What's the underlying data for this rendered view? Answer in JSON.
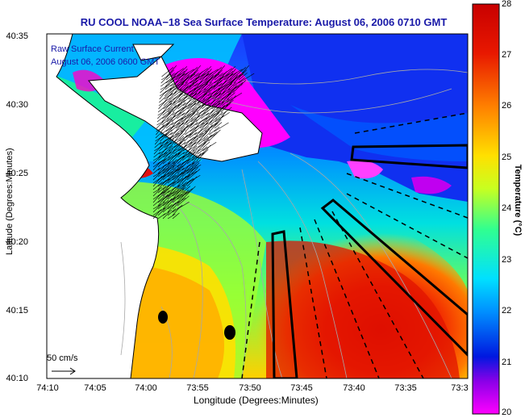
{
  "title": "RU COOL  NOAA−18  Sea Surface Temperature:  August 06, 2006 0710 GMT",
  "overlay": {
    "legend_line1": "Raw Surface Current",
    "legend_line2": "August 06, 2006 0600 GMT"
  },
  "scale": {
    "label": "50 cm/s"
  },
  "axes": {
    "xlabel": "Longitude (Degrees:Minutes)",
    "ylabel": "Latitude (Degrees:Minutes)",
    "xticks": [
      "74:10",
      "74:05",
      "74:00",
      "73:55",
      "73:50",
      "73:45",
      "73:40",
      "73:35",
      "73:3"
    ],
    "yticks": [
      "40:35",
      "40:30",
      "40:25",
      "40:20",
      "40:15",
      "40:10"
    ]
  },
  "colorbar": {
    "label": "Temperature (°C)",
    "ticks": [
      "28",
      "27",
      "26",
      "25",
      "24",
      "23",
      "22",
      "21",
      "20"
    ],
    "min": 20,
    "max": 28,
    "colors": [
      "#ff00ff",
      "#6a00d8",
      "#0018e0",
      "#0090ff",
      "#00e0ff",
      "#30ff90",
      "#c8ff20",
      "#ffe000",
      "#ff8000",
      "#e81800",
      "#c80000"
    ]
  },
  "map": {
    "land_color": "#ffffff",
    "coastline_color": "#000000",
    "bathymetry_color": "#a8a8a8",
    "current_vector_color": "#000000"
  }
}
